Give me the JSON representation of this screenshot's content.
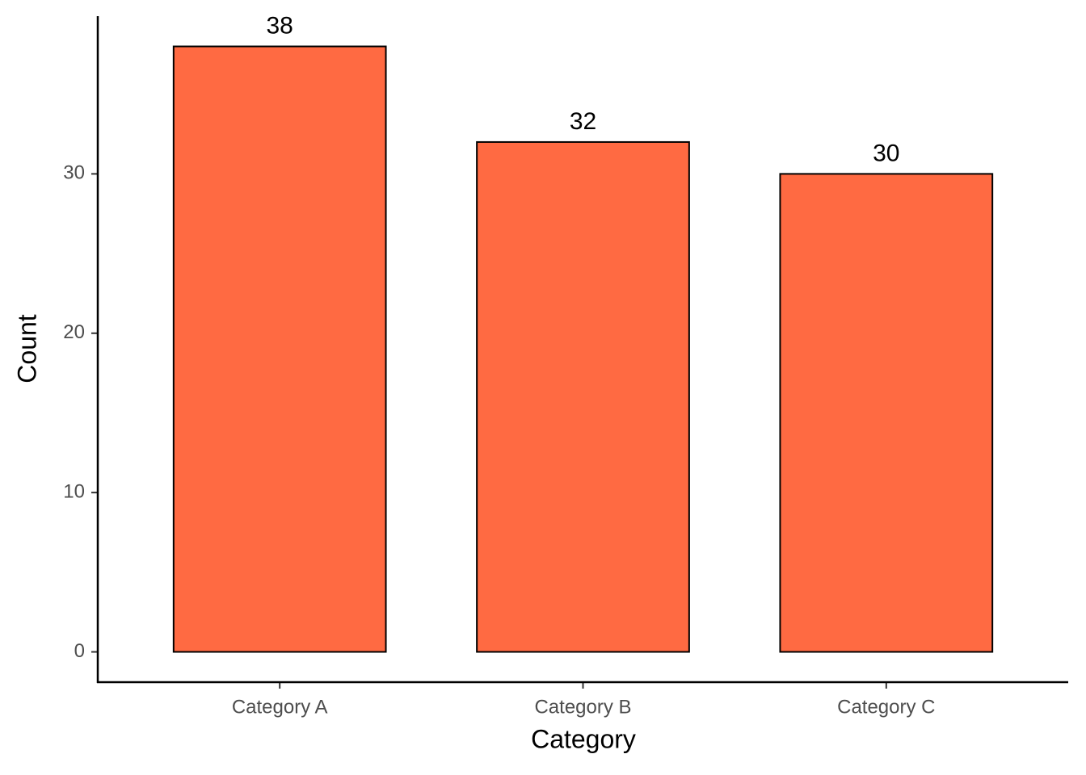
{
  "chart_data": {
    "type": "bar",
    "x_label": "Category",
    "y_label": "Count",
    "categories": [
      "Category A",
      "Category B",
      "Category C"
    ],
    "values": [
      38,
      32,
      30
    ],
    "color": "#ff6a42",
    "ylim": [
      -1.9,
      39.9
    ],
    "yticks": [
      0,
      10,
      20,
      30
    ],
    "grid": false
  }
}
